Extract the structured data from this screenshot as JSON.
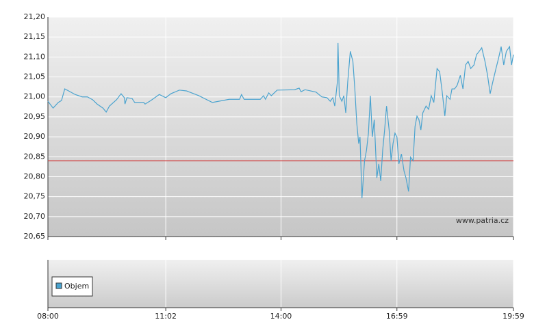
{
  "chart_data": {
    "type": "line",
    "x": [
      "08:00",
      "08:08",
      "08:16",
      "08:21",
      "08:26",
      "08:32",
      "08:42",
      "08:53",
      "09:01",
      "09:09",
      "09:16",
      "09:25",
      "09:30",
      "09:35",
      "09:46",
      "09:53",
      "09:58",
      "09:59",
      "10:02",
      "10:10",
      "10:14",
      "10:28",
      "10:30",
      "10:39",
      "10:52",
      "11:02",
      "11:10",
      "11:23",
      "11:34",
      "11:53",
      "12:14",
      "12:40",
      "12:56",
      "12:59",
      "13:03",
      "13:28",
      "13:33",
      "13:36",
      "13:41",
      "13:45",
      "13:54",
      "14:21",
      "14:28",
      "14:31",
      "14:37",
      "14:54",
      "15:03",
      "15:11",
      "15:16",
      "15:20",
      "15:23",
      "15:25",
      "15:27",
      "15:28",
      "15:30",
      "15:34",
      "15:37",
      "15:40",
      "15:43",
      "15:47",
      "15:51",
      "15:54",
      "15:57",
      "16:00",
      "16:02",
      "16:05",
      "16:09",
      "16:12",
      "16:15",
      "16:18",
      "16:21",
      "16:24",
      "16:28",
      "16:31",
      "16:34",
      "16:37",
      "16:40",
      "16:43",
      "16:47",
      "16:50",
      "16:53",
      "16:56",
      "16:59",
      "17:02",
      "17:06",
      "17:10",
      "17:13",
      "17:17",
      "17:20",
      "17:24",
      "17:27",
      "17:30",
      "17:33",
      "17:36",
      "17:39",
      "17:44",
      "17:48",
      "17:52",
      "17:56",
      "18:01",
      "18:05",
      "18:09",
      "18:13",
      "18:16",
      "18:21",
      "18:24",
      "18:28",
      "18:32",
      "18:37",
      "18:41",
      "18:45",
      "18:49",
      "18:53",
      "18:58",
      "19:02",
      "19:06",
      "19:10",
      "19:15",
      "19:19",
      "19:23",
      "19:27",
      "19:32",
      "19:36",
      "19:40",
      "19:44",
      "19:48",
      "19:53",
      "19:56",
      "19:59"
    ],
    "series": [
      {
        "color": "#4aa3cf",
        "values": [
          20.989,
          20.972,
          20.986,
          20.991,
          21.02,
          21.015,
          21.006,
          21.0,
          21.0,
          20.993,
          20.982,
          20.972,
          20.962,
          20.977,
          20.993,
          21.008,
          20.998,
          20.982,
          20.998,
          20.996,
          20.986,
          20.986,
          20.982,
          20.991,
          21.006,
          20.998,
          21.008,
          21.017,
          21.015,
          21.003,
          20.986,
          20.994,
          20.994,
          21.006,
          20.994,
          20.994,
          21.003,
          20.994,
          21.01,
          21.003,
          21.017,
          21.018,
          21.022,
          21.013,
          21.018,
          21.012,
          21.0,
          20.998,
          20.989,
          20.998,
          20.977,
          21.006,
          21.037,
          21.135,
          21.003,
          20.989,
          21.003,
          20.96,
          21.037,
          21.114,
          21.089,
          21.02,
          20.934,
          20.883,
          20.9,
          20.746,
          20.84,
          20.866,
          20.909,
          21.003,
          20.9,
          20.943,
          20.797,
          20.832,
          20.789,
          20.866,
          20.917,
          20.977,
          20.917,
          20.84,
          20.883,
          20.909,
          20.9,
          20.832,
          20.857,
          20.814,
          20.797,
          20.763,
          20.849,
          20.84,
          20.926,
          20.952,
          20.943,
          20.917,
          20.96,
          20.977,
          20.969,
          21.003,
          20.986,
          21.071,
          21.063,
          21.012,
          20.952,
          21.003,
          20.994,
          21.02,
          21.02,
          21.029,
          21.054,
          21.02,
          21.08,
          21.089,
          21.071,
          21.08,
          21.106,
          21.114,
          21.123,
          21.089,
          21.054,
          21.008,
          21.037,
          21.071,
          21.097,
          21.126,
          21.08,
          21.114,
          21.126,
          21.08,
          21.106
        ]
      }
    ],
    "xlim": [
      "08:00",
      "19:59"
    ],
    "xticks": [
      "08:00",
      "11:02",
      "14:00",
      "16:59",
      "19:59"
    ],
    "ylim": [
      20.65,
      21.2
    ],
    "yticks": [
      {
        "value": 20.65,
        "label": "20,65"
      },
      {
        "value": 20.7,
        "label": "20,70"
      },
      {
        "value": 20.75,
        "label": "20,75"
      },
      {
        "value": 20.8,
        "label": "20,80"
      },
      {
        "value": 20.85,
        "label": "20,85"
      },
      {
        "value": 20.9,
        "label": "20,90"
      },
      {
        "value": 20.95,
        "label": "20,95"
      },
      {
        "value": 21.0,
        "label": "21,00"
      },
      {
        "value": 21.05,
        "label": "21,05"
      },
      {
        "value": 21.1,
        "label": "21,10"
      },
      {
        "value": 21.15,
        "label": "21,15"
      },
      {
        "value": 21.2,
        "label": "21,20"
      }
    ],
    "grid": true,
    "reference_line": {
      "value": 20.84,
      "color": "#d04040"
    },
    "watermark": "www.patria.cz",
    "legend": {
      "label": "Objem",
      "color": "#4aa3cf"
    }
  }
}
